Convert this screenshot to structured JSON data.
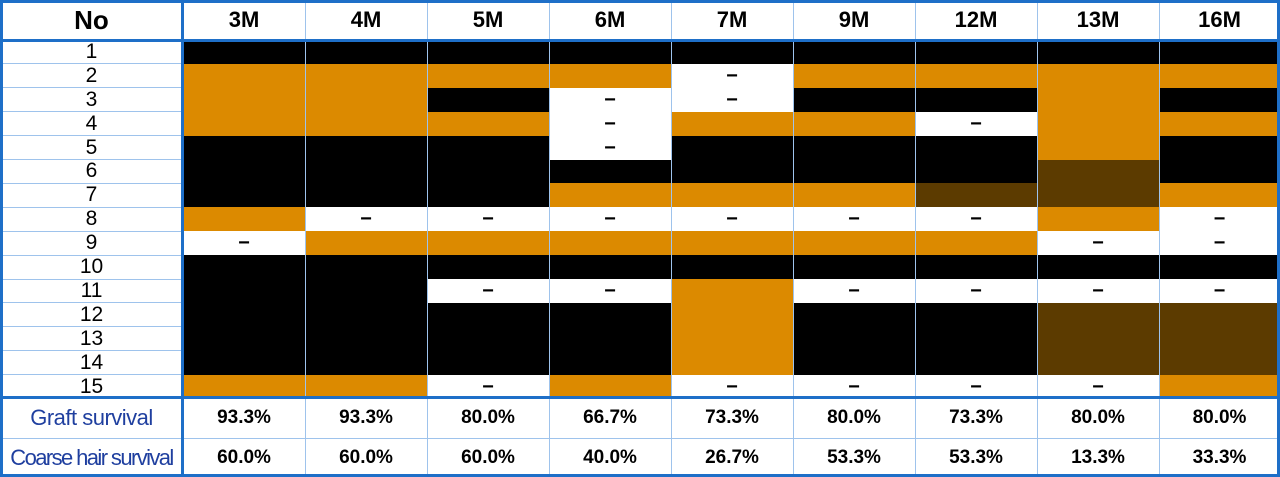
{
  "chart_data": {
    "type": "table",
    "corner_label": "No",
    "columns": [
      "3M",
      "4M",
      "5M",
      "6M",
      "7M",
      "9M",
      "12M",
      "13M",
      "16M"
    ],
    "rows": [
      "1",
      "2",
      "3",
      "4",
      "5",
      "6",
      "7",
      "8",
      "9",
      "10",
      "11",
      "12",
      "13",
      "14",
      "15"
    ],
    "legend_codes": {
      "B": "black",
      "O": "orange",
      "D": "brown",
      "W": "white-dash"
    },
    "colors": {
      "B": "#000000",
      "O": "#dc8a00",
      "D": "#5c3b00",
      "W": "#ffffff",
      "border": "#1e6fc8",
      "label": "#1f3f9f"
    },
    "cells": [
      [
        "B",
        "B",
        "B",
        "B",
        "B",
        "B",
        "B",
        "B",
        "B"
      ],
      [
        "O",
        "O",
        "O",
        "O",
        "W",
        "O",
        "O",
        "O",
        "O"
      ],
      [
        "O",
        "O",
        "B",
        "W",
        "W",
        "B",
        "B",
        "O",
        "B"
      ],
      [
        "O",
        "O",
        "O",
        "W",
        "O",
        "O",
        "W",
        "O",
        "O"
      ],
      [
        "B",
        "B",
        "B",
        "W",
        "B",
        "B",
        "B",
        "O",
        "B"
      ],
      [
        "B",
        "B",
        "B",
        "B",
        "B",
        "B",
        "B",
        "D",
        "B"
      ],
      [
        "B",
        "B",
        "B",
        "O",
        "O",
        "O",
        "D",
        "D",
        "O"
      ],
      [
        "O",
        "W",
        "W",
        "W",
        "W",
        "W",
        "W",
        "O",
        "W"
      ],
      [
        "W",
        "O",
        "O",
        "O",
        "O",
        "O",
        "O",
        "W",
        "W"
      ],
      [
        "B",
        "B",
        "B",
        "B",
        "B",
        "B",
        "B",
        "B",
        "B"
      ],
      [
        "B",
        "B",
        "W",
        "W",
        "O",
        "W",
        "W",
        "W",
        "W"
      ],
      [
        "B",
        "B",
        "B",
        "B",
        "O",
        "B",
        "B",
        "D",
        "D"
      ],
      [
        "B",
        "B",
        "B",
        "B",
        "O",
        "B",
        "B",
        "D",
        "D"
      ],
      [
        "B",
        "B",
        "B",
        "B",
        "O",
        "B",
        "B",
        "D",
        "D"
      ],
      [
        "O",
        "O",
        "W",
        "O",
        "W",
        "W",
        "W",
        "W",
        "O"
      ]
    ],
    "dash_symbol": "−",
    "summary": [
      {
        "label": "Graft survival",
        "values": [
          "93.3%",
          "93.3%",
          "80.0%",
          "66.7%",
          "73.3%",
          "80.0%",
          "73.3%",
          "80.0%",
          "80.0%"
        ]
      },
      {
        "label": "Coarse hair survival",
        "values": [
          "60.0%",
          "60.0%",
          "60.0%",
          "40.0%",
          "26.7%",
          "53.3%",
          "53.3%",
          "13.3%",
          "33.3%"
        ]
      }
    ]
  }
}
